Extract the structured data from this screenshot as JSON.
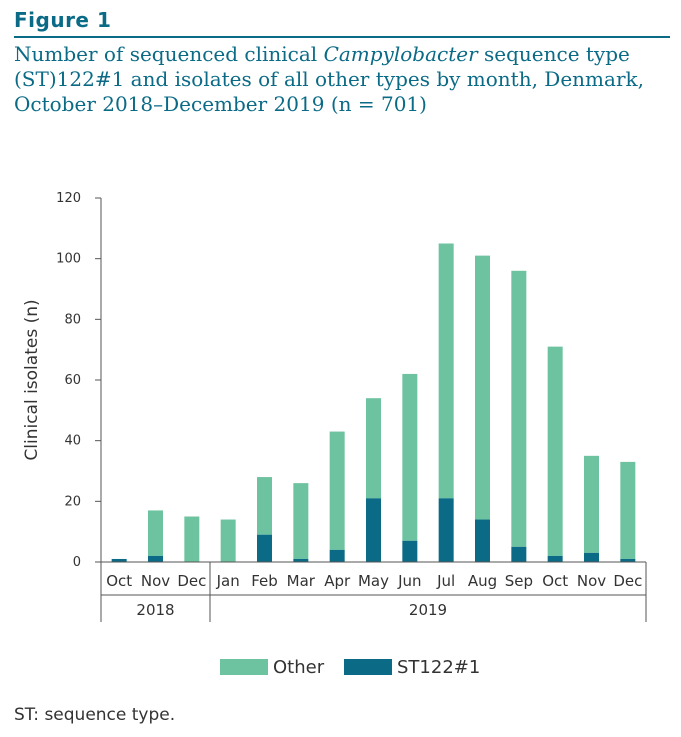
{
  "figure_label": "Figure 1",
  "title_parts": {
    "a": "Number of sequenced clinical ",
    "b": "Campylobacter",
    "c": " sequence type (ST)122#1 and isolates of all other types by month, Denmark, October 2018–December 2019 (n = 701)"
  },
  "footnote": "ST: sequence type.",
  "colors": {
    "other": "#6dc3a0",
    "st": "#0b6b86",
    "title": "#0b6b86"
  },
  "chart_data": {
    "type": "bar",
    "stacked": true,
    "categories": [
      "Oct",
      "Nov",
      "Dec",
      "Jan",
      "Feb",
      "Mar",
      "Apr",
      "May",
      "Jun",
      "Jul",
      "Aug",
      "Sep",
      "Oct",
      "Nov",
      "Dec"
    ],
    "year_groups": [
      {
        "label": "2018",
        "count": 3
      },
      {
        "label": "2019",
        "count": 12
      }
    ],
    "series": [
      {
        "name": "ST122#1",
        "values": [
          1,
          2,
          0,
          0,
          9,
          1,
          4,
          21,
          7,
          21,
          14,
          5,
          2,
          3,
          1
        ]
      },
      {
        "name": "Other",
        "values": [
          0,
          15,
          15,
          14,
          19,
          25,
          39,
          33,
          55,
          84,
          87,
          91,
          69,
          32,
          32
        ]
      }
    ],
    "ylabel": "Clinical isolates (n)",
    "xlabel": "",
    "ylim": [
      0,
      120
    ],
    "yticks": [
      0,
      20,
      40,
      60,
      80,
      100,
      120
    ],
    "grid": false,
    "legend_position": "bottom"
  }
}
